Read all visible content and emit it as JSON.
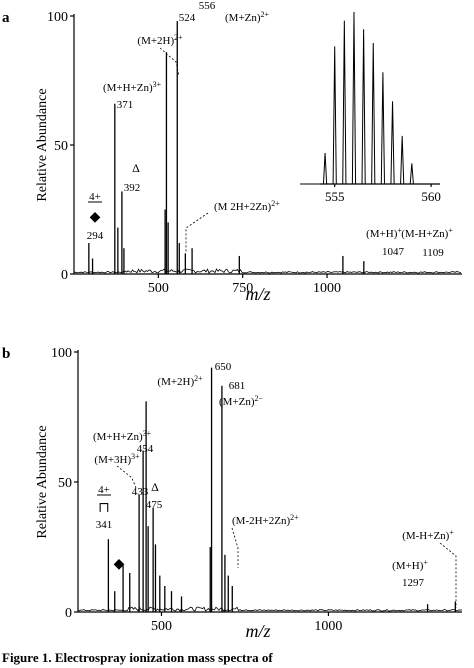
{
  "chart_data": [
    {
      "type": "bar",
      "panel_label": "a",
      "xlabel": "m/z",
      "ylabel": "Relative Abundance",
      "xlim": [
        250,
        1400
      ],
      "ylim": [
        0,
        100
      ],
      "xticks": [
        {
          "v": 500,
          "label": "500"
        },
        {
          "v": 750,
          "label": "750"
        },
        {
          "v": 1000,
          "label": "1000"
        }
      ],
      "yticks": [
        {
          "v": 0,
          "label": "0"
        },
        {
          "v": 50,
          "label": "50"
        },
        {
          "v": 100,
          "label": "100"
        }
      ],
      "peaks": [
        {
          "x": 294,
          "y": 12
        },
        {
          "x": 305,
          "y": 6
        },
        {
          "x": 371,
          "y": 66
        },
        {
          "x": 380,
          "y": 18
        },
        {
          "x": 392,
          "y": 32
        },
        {
          "x": 398,
          "y": 10
        },
        {
          "x": 520,
          "y": 25
        },
        {
          "x": 524,
          "y": 86
        },
        {
          "x": 529,
          "y": 20
        },
        {
          "x": 556,
          "y": 98
        },
        {
          "x": 562,
          "y": 12
        },
        {
          "x": 580,
          "y": 8
        },
        {
          "x": 600,
          "y": 10
        },
        {
          "x": 740,
          "y": 7
        },
        {
          "x": 1047,
          "y": 7
        },
        {
          "x": 1109,
          "y": 5
        }
      ],
      "annotations": [
        {
          "id": "mhzn3",
          "text": "(M+H+Zn)3+",
          "x": 371
        },
        {
          "id": "p371",
          "text": "371",
          "x": 371
        },
        {
          "id": "tri",
          "text": "Δ",
          "x": 392
        },
        {
          "id": "p392",
          "text": "392",
          "x": 392
        },
        {
          "id": "m2h",
          "text": "(M+2H)2+",
          "x": 524
        },
        {
          "id": "p524",
          "text": "524",
          "x": 524
        },
        {
          "id": "p556",
          "text": "556",
          "x": 556
        },
        {
          "id": "mzn",
          "text": "(M+Zn)2+",
          "x": 556
        },
        {
          "id": "m2h2zn",
          "text": "(M 2H+2Zn)2+",
          "x": 580
        },
        {
          "id": "q4",
          "text": "4+",
          "x": 294
        },
        {
          "id": "dia",
          "text": "◆",
          "x": 294
        },
        {
          "id": "p294",
          "text": "294",
          "x": 294
        },
        {
          "id": "mh",
          "text": "(M+H)+",
          "x": 1047
        },
        {
          "id": "p1047",
          "text": "1047",
          "x": 1047
        },
        {
          "id": "mhzn",
          "text": "(M-H+Zn)+",
          "x": 1109
        },
        {
          "id": "p1109",
          "text": "1109",
          "x": 1109
        }
      ],
      "inset": {
        "xticks": [
          {
            "v": 555,
            "label": "555"
          },
          {
            "v": 560,
            "label": "560"
          }
        ],
        "xlim": [
          553.2,
          561.5
        ],
        "peaks": [
          {
            "x": 554.5,
            "y": 18
          },
          {
            "x": 555.0,
            "y": 80
          },
          {
            "x": 555.5,
            "y": 95
          },
          {
            "x": 556.0,
            "y": 100
          },
          {
            "x": 556.5,
            "y": 90
          },
          {
            "x": 557.0,
            "y": 82
          },
          {
            "x": 557.5,
            "y": 65
          },
          {
            "x": 558.0,
            "y": 48
          },
          {
            "x": 558.5,
            "y": 28
          },
          {
            "x": 559.0,
            "y": 12
          }
        ]
      }
    },
    {
      "type": "bar",
      "panel_label": "b",
      "xlabel": "m/z",
      "ylabel": "Relative Abundance",
      "xlim": [
        250,
        1400
      ],
      "ylim": [
        0,
        100
      ],
      "xticks": [
        {
          "v": 500,
          "label": "500"
        },
        {
          "v": 1000,
          "label": "1000"
        }
      ],
      "yticks": [
        {
          "v": 0,
          "label": "0"
        },
        {
          "v": 50,
          "label": "50"
        },
        {
          "v": 100,
          "label": "100"
        }
      ],
      "peaks": [
        {
          "x": 341,
          "y": 28
        },
        {
          "x": 360,
          "y": 8
        },
        {
          "x": 385,
          "y": 18
        },
        {
          "x": 405,
          "y": 15
        },
        {
          "x": 433,
          "y": 45
        },
        {
          "x": 445,
          "y": 62
        },
        {
          "x": 454,
          "y": 81
        },
        {
          "x": 460,
          "y": 33
        },
        {
          "x": 475,
          "y": 40
        },
        {
          "x": 482,
          "y": 26
        },
        {
          "x": 495,
          "y": 14
        },
        {
          "x": 510,
          "y": 10
        },
        {
          "x": 530,
          "y": 8
        },
        {
          "x": 560,
          "y": 6
        },
        {
          "x": 646,
          "y": 25
        },
        {
          "x": 650,
          "y": 94
        },
        {
          "x": 681,
          "y": 87
        },
        {
          "x": 690,
          "y": 22
        },
        {
          "x": 700,
          "y": 14
        },
        {
          "x": 712,
          "y": 10
        },
        {
          "x": 1297,
          "y": 3
        },
        {
          "x": 1380,
          "y": 4
        }
      ],
      "annotations": [
        {
          "id": "m3h",
          "text": "(M+3H)3+",
          "x": 433
        },
        {
          "id": "p433",
          "text": "433",
          "x": 433
        },
        {
          "id": "tri",
          "text": "Δ",
          "x": 475
        },
        {
          "id": "p475",
          "text": "475",
          "x": 475
        },
        {
          "id": "mhzn3",
          "text": "(M+H+Zn)3+",
          "x": 454
        },
        {
          "id": "p454",
          "text": "454",
          "x": 454
        },
        {
          "id": "m2h",
          "text": "(M+2H)2+",
          "x": 650
        },
        {
          "id": "p650",
          "text": "650",
          "x": 650
        },
        {
          "id": "p681",
          "text": "681",
          "x": 681
        },
        {
          "id": "mzn",
          "text": "(M+Zn)2−",
          "x": 681
        },
        {
          "id": "m2h2zn",
          "text": "(M-2H+2Zn)2+",
          "x": 712
        },
        {
          "id": "q4",
          "text": "4+",
          "x": 341
        },
        {
          "id": "sq",
          "text": "⊓",
          "x": 341
        },
        {
          "id": "p341",
          "text": "341",
          "x": 341
        },
        {
          "id": "dia",
          "text": "◆",
          "x": 360
        },
        {
          "id": "mh",
          "text": "(M+H)+",
          "x": 1297
        },
        {
          "id": "p1297",
          "text": "1297",
          "x": 1297
        },
        {
          "id": "mhzn",
          "text": "(M-H+Zn)+",
          "x": 1380
        }
      ]
    }
  ],
  "caption": "Figure 1.   Electrospray ionization mass spectra of"
}
